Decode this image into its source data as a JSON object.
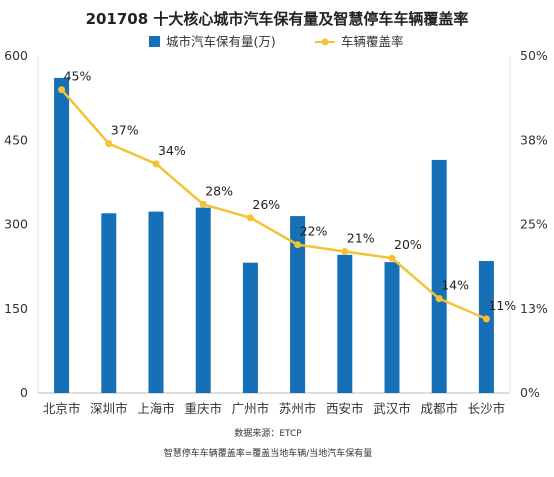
{
  "chart_data": {
    "type": "bar",
    "title": "201708 十大核心城市汽车保有量及智慧停车车辆覆盖率",
    "categories": [
      "北京市",
      "深圳市",
      "上海市",
      "重庆市",
      "广州市",
      "苏州市",
      "西安市",
      "武汉市",
      "成都市",
      "长沙市"
    ],
    "series": [
      {
        "name": "城市汽车保有量(万)",
        "type": "bar",
        "axis": "left",
        "color": "#1670b8",
        "values": [
          561,
          320,
          323,
          330,
          232,
          315,
          246,
          233,
          415,
          235
        ]
      },
      {
        "name": "车辆覆盖率",
        "type": "line",
        "axis": "right",
        "color": "#f4c233",
        "values": [
          45,
          37,
          34,
          28,
          26,
          22,
          21,
          20,
          14,
          11
        ],
        "labels": [
          "45%",
          "37%",
          "34%",
          "28%",
          "26%",
          "22%",
          "21%",
          "20%",
          "14%",
          "11%"
        ]
      }
    ],
    "y_left": {
      "ticks": [
        "0",
        "150",
        "300",
        "450",
        "600"
      ],
      "min": 0,
      "max": 600
    },
    "y_right": {
      "ticks": [
        "0%",
        "13%",
        "25%",
        "38%",
        "50%"
      ],
      "min": 0,
      "max": 50
    },
    "legend_position": "top-center",
    "grid": false
  },
  "notes": {
    "source": "数据来源：ETCP",
    "definition": "智慧停车车辆覆盖率=覆盖当地车辆/当地汽车保有量"
  }
}
